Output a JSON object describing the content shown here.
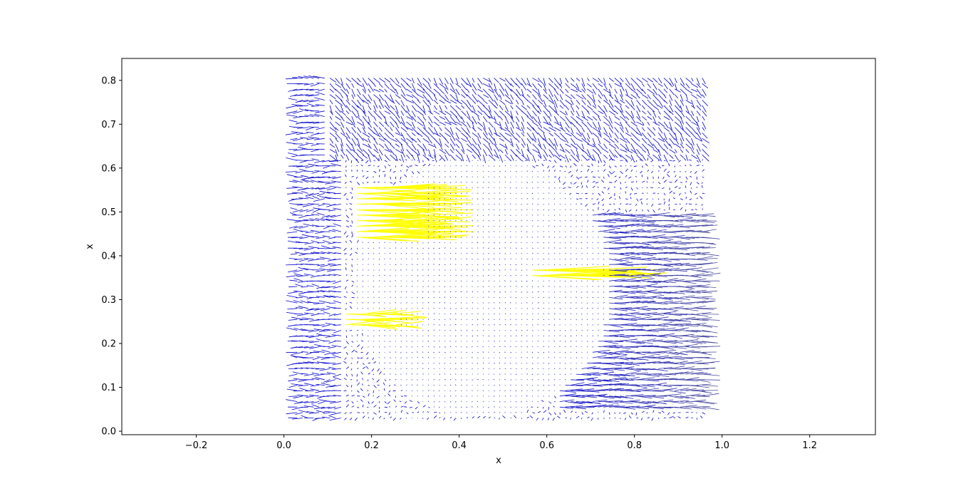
{
  "chart_data": {
    "type": "quiver",
    "title": "",
    "xlabel": "x",
    "ylabel": "x",
    "xlim": [
      -0.37,
      1.35
    ],
    "ylim": [
      -0.008,
      0.85
    ],
    "x_ticks": [
      -0.2,
      0.0,
      0.2,
      0.4,
      0.6,
      0.8,
      1.0,
      1.2
    ],
    "x_tick_labels": [
      "−0.2",
      "0.0",
      "0.2",
      "0.4",
      "0.6",
      "0.8",
      "1.0",
      "1.2"
    ],
    "y_ticks": [
      0.0,
      0.1,
      0.2,
      0.3,
      0.4,
      0.5,
      0.6,
      0.7,
      0.8
    ],
    "y_tick_labels": [
      "0.0",
      "0.1",
      "0.2",
      "0.3",
      "0.4",
      "0.5",
      "0.6",
      "0.7",
      "0.8"
    ],
    "grid": false,
    "field_extent": {
      "x": [
        0.03,
        0.96
      ],
      "y": [
        0.03,
        0.81
      ]
    },
    "grid_spacing": 0.0125,
    "colormap": [
      "#0000cc",
      "#808080",
      "#ffff00"
    ],
    "color_meaning": "arrow color scales with vector magnitude (blue low → gray → yellow high)",
    "regions": [
      {
        "name": "left-outer-flow",
        "x_range": [
          0.03,
          0.14
        ],
        "y_range": [
          0.03,
          0.81
        ],
        "dx": -0.02,
        "dy": 0.0,
        "magnitude": "low"
      },
      {
        "name": "top-swirl",
        "x_range": [
          0.1,
          0.96
        ],
        "y_range": [
          0.62,
          0.81
        ],
        "dx": 0.01,
        "dy": -0.012,
        "magnitude": "low"
      },
      {
        "name": "right-strong-flow",
        "x_range": [
          0.62,
          0.96
        ],
        "y_range": [
          0.05,
          0.5
        ],
        "dx": 0.035,
        "dy": 0.0,
        "magnitude": "medium"
      },
      {
        "name": "upper-left-cluster",
        "x_range": [
          0.16,
          0.33
        ],
        "y_range": [
          0.44,
          0.56
        ],
        "dx": 0.11,
        "dy": 0.0,
        "magnitude": "high"
      },
      {
        "name": "right-mid-cluster",
        "x_range": [
          0.56,
          0.72
        ],
        "y_range": [
          0.35,
          0.37
        ],
        "dx": 0.15,
        "dy": 0.0,
        "magnitude": "high"
      },
      {
        "name": "lower-left-cluster",
        "x_range": [
          0.13,
          0.26
        ],
        "y_range": [
          0.24,
          0.28
        ],
        "dx": 0.07,
        "dy": 0.0,
        "magnitude": "high"
      }
    ]
  }
}
